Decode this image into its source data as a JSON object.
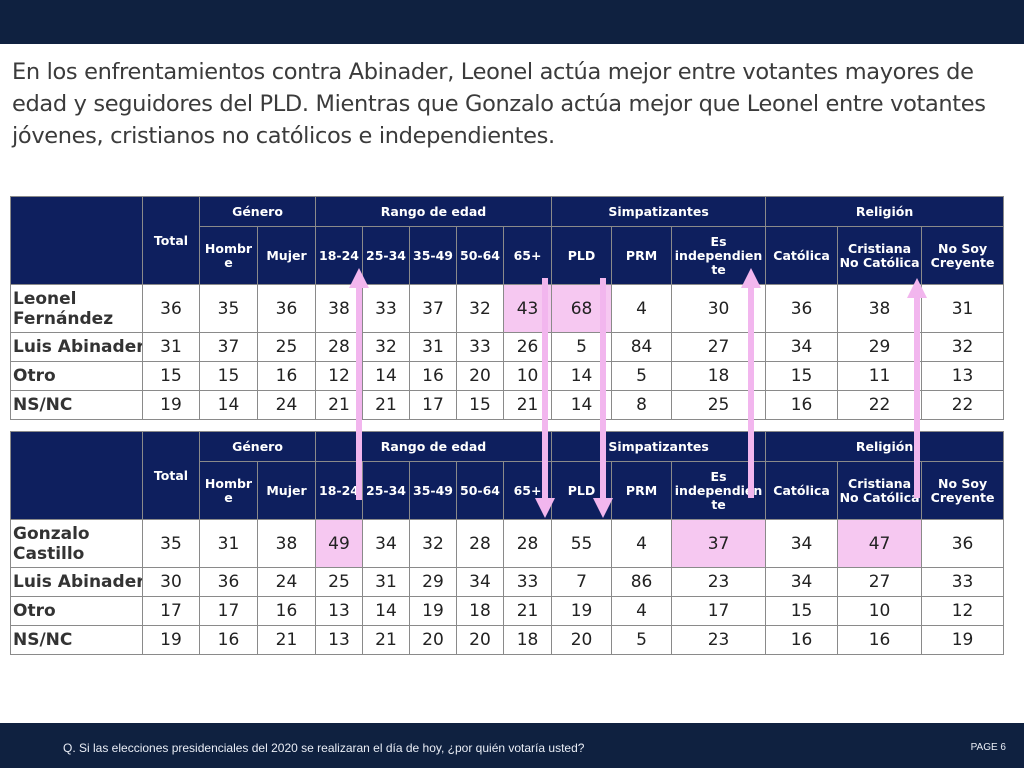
{
  "title": "En los enfrentamientos contra Abinader, Leonel actúa  mejor entre votantes mayores de edad y seguidores del PLD. Mientras que Gonzalo actúa mejor que Leonel entre votantes jóvenes, cristianos no católicos e independientes.",
  "header": {
    "total": "Total",
    "groups": [
      "Género",
      "Rango de edad",
      "Simpatizantes",
      "Religión"
    ],
    "cols": [
      "Hombr e",
      "Mujer",
      "18-24",
      "25-34",
      "35-49",
      "50-64",
      "65+",
      "PLD",
      "PRM",
      "Es independien te",
      "Católica",
      "Cristiana No Católica",
      "No Soy Creyente"
    ]
  },
  "tables": [
    {
      "rows": [
        {
          "label": "Leonel Fernández",
          "values": [
            "36",
            "35",
            "36",
            "38",
            "33",
            "37",
            "32",
            "43",
            "68",
            "4",
            "30",
            "36",
            "38",
            "31"
          ]
        },
        {
          "label": "Luis Abinader",
          "values": [
            "31",
            "37",
            "25",
            "28",
            "32",
            "31",
            "33",
            "26",
            "5",
            "84",
            "27",
            "34",
            "29",
            "32"
          ]
        },
        {
          "label": "Otro",
          "values": [
            "15",
            "15",
            "16",
            "12",
            "14",
            "16",
            "20",
            "10",
            "14",
            "5",
            "18",
            "15",
            "11",
            "13"
          ]
        },
        {
          "label": "NS/NC",
          "values": [
            "19",
            "14",
            "24",
            "21",
            "21",
            "17",
            "15",
            "21",
            "14",
            "8",
            "25",
            "16",
            "22",
            "22"
          ]
        }
      ]
    },
    {
      "rows": [
        {
          "label": "Gonzalo Castillo",
          "values": [
            "35",
            "31",
            "38",
            "49",
            "34",
            "32",
            "28",
            "28",
            "55",
            "4",
            "37",
            "34",
            "47",
            "36"
          ]
        },
        {
          "label": "Luis Abinader",
          "values": [
            "30",
            "36",
            "24",
            "25",
            "31",
            "29",
            "34",
            "33",
            "7",
            "86",
            "23",
            "34",
            "27",
            "33"
          ]
        },
        {
          "label": "Otro",
          "values": [
            "17",
            "17",
            "16",
            "13",
            "14",
            "19",
            "18",
            "21",
            "19",
            "4",
            "17",
            "15",
            "10",
            "12"
          ]
        },
        {
          "label": "NS/NC",
          "values": [
            "19",
            "16",
            "21",
            "13",
            "21",
            "20",
            "20",
            "18",
            "20",
            "5",
            "23",
            "16",
            "16",
            "19"
          ]
        }
      ]
    }
  ],
  "colors": {
    "header_bg": "#0e1f5e",
    "highlight": "#f6c8f1",
    "arrow": "#f2b6ee",
    "bar": "#0f2140"
  },
  "footer": {
    "question": "Q. Si las elecciones presidenciales del 2020 se realizaran el día de hoy, ¿por quién votaría usted?",
    "page": "PAGE 6"
  }
}
